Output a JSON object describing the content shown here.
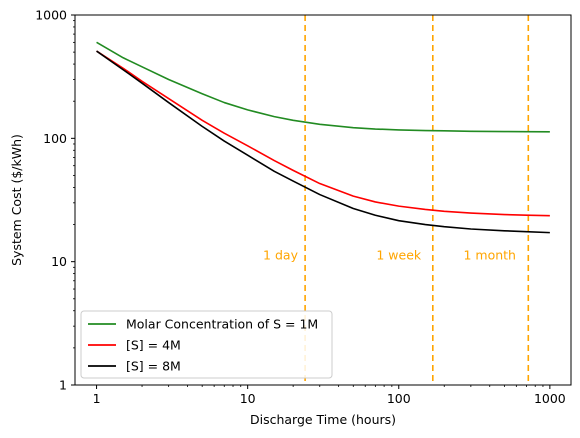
{
  "chart_data": {
    "type": "line",
    "title": "",
    "xlabel": "Discharge Time (hours)",
    "ylabel": "System Cost ($/kWh)",
    "xscale": "log",
    "yscale": "log",
    "xlim": [
      0.72,
      1380
    ],
    "ylim": [
      1,
      1000
    ],
    "xticks": [
      1,
      10,
      100,
      1000
    ],
    "xtick_labels": [
      "1",
      "10",
      "100",
      "1000"
    ],
    "yticks": [
      1,
      10,
      100,
      1000
    ],
    "ytick_labels": [
      "1",
      "10",
      "100",
      "1000"
    ],
    "grid": false,
    "legend_position": "lower-left",
    "series": [
      {
        "name": "Molar Concentration of S = 1M",
        "color": "#228b22",
        "x": [
          1,
          1.5,
          2,
          3,
          5,
          7,
          10,
          15,
          20,
          30,
          50,
          70,
          100,
          150,
          200,
          300,
          500,
          700,
          1000
        ],
        "y": [
          600,
          450,
          380,
          300,
          230,
          195,
          170,
          150,
          140,
          130,
          122,
          119,
          117,
          115.5,
          115,
          114,
          113.5,
          113.2,
          113
        ]
      },
      {
        "name": "[S] = 4M",
        "color": "#ff0000",
        "x": [
          1,
          1.5,
          2,
          3,
          5,
          7,
          10,
          15,
          20,
          30,
          50,
          70,
          100,
          150,
          200,
          300,
          500,
          700,
          1000
        ],
        "y": [
          510,
          370,
          290,
          210,
          140,
          110,
          87,
          66,
          55,
          43,
          34,
          30.5,
          28.2,
          26.5,
          25.6,
          24.8,
          24.1,
          23.8,
          23.6
        ]
      },
      {
        "name": "[S] = 8M",
        "color": "#000000",
        "x": [
          1,
          1.5,
          2,
          3,
          5,
          7,
          10,
          15,
          20,
          30,
          50,
          70,
          100,
          150,
          200,
          300,
          500,
          700,
          1000
        ],
        "y": [
          510,
          360,
          280,
          195,
          125,
          95,
          73,
          54,
          45,
          35,
          27,
          23.8,
          21.5,
          20,
          19.2,
          18.4,
          17.8,
          17.5,
          17.2
        ]
      }
    ],
    "reference_lines": [
      {
        "x": 24,
        "color": "#ffa500",
        "label": "1 day",
        "label_x": 16.5,
        "label_y": 10.4
      },
      {
        "x": 168,
        "color": "#ffa500",
        "label": "1 week",
        "label_x": 100,
        "label_y": 10.4
      },
      {
        "x": 720,
        "color": "#ffa500",
        "label": "1 month",
        "label_x": 400,
        "label_y": 10.4
      }
    ]
  }
}
